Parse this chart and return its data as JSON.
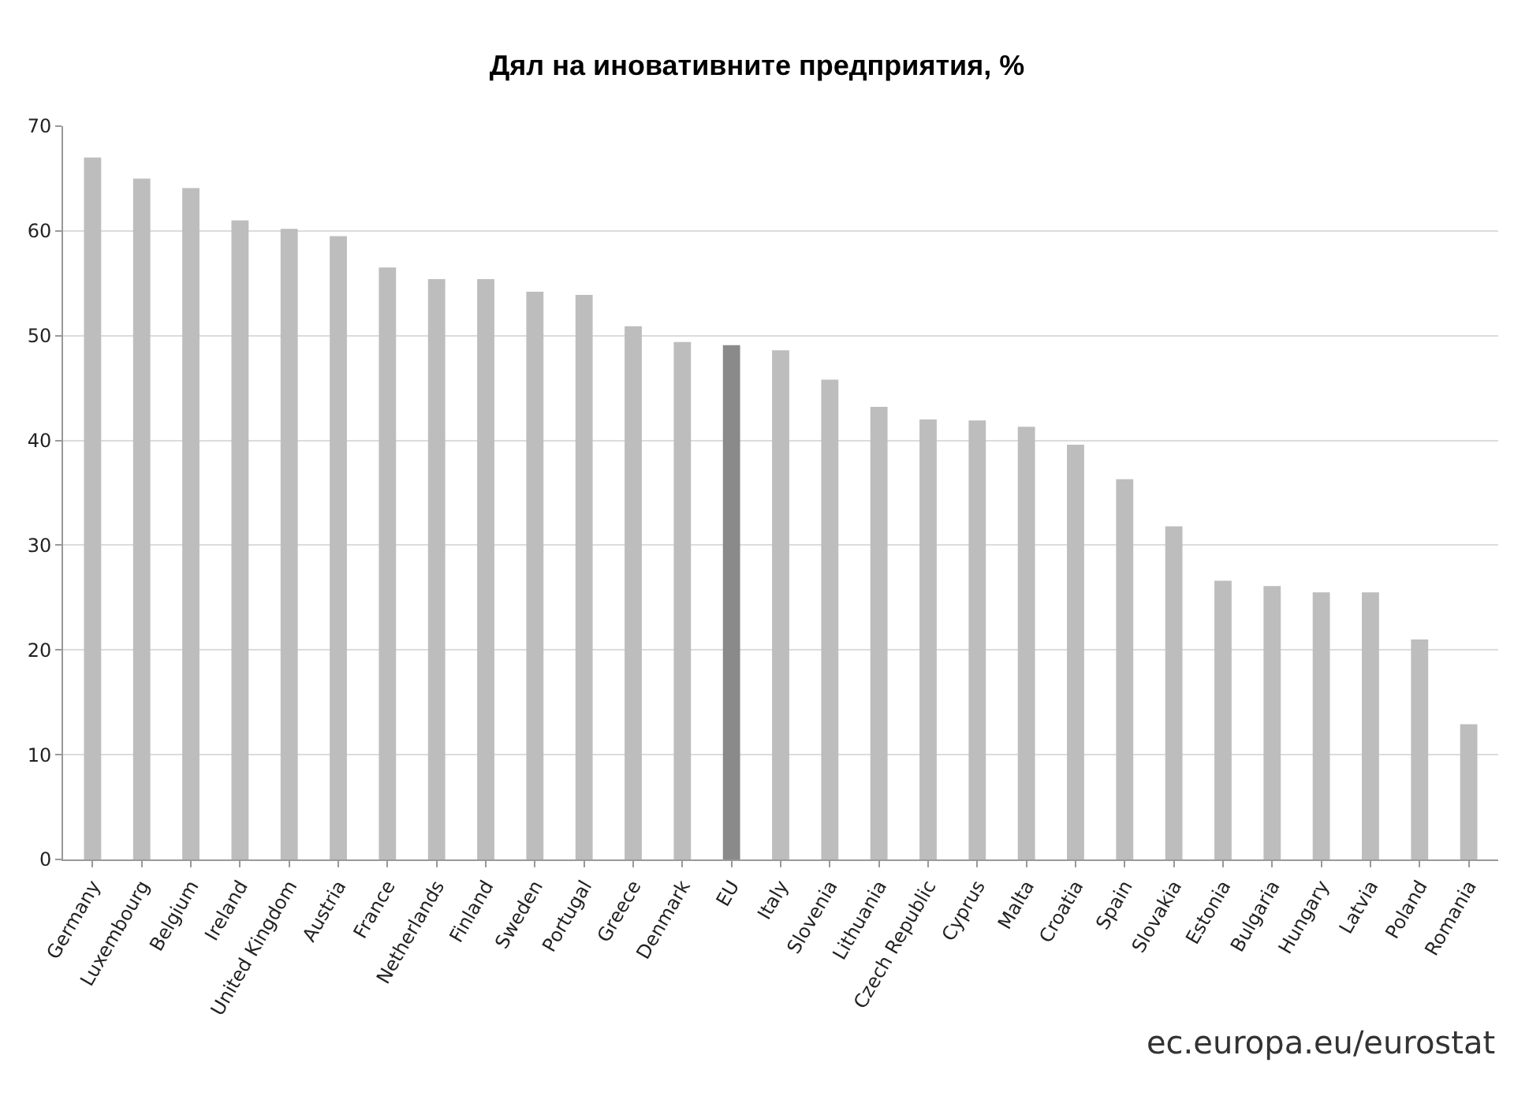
{
  "chart_data": {
    "type": "bar",
    "title": "Дял на иновативните предприятия, %",
    "categories": [
      "Germany",
      "Luxembourg",
      "Belgium",
      "Ireland",
      "United Kingdom",
      "Austria",
      "France",
      "Netherlands",
      "Finland",
      "Sweden",
      "Portugal",
      "Greece",
      "Denmark",
      "EU",
      "Italy",
      "Slovenia",
      "Lithuania",
      "Czech Republic",
      "Cyprus",
      "Malta",
      "Croatia",
      "Spain",
      "Slovakia",
      "Estonia",
      "Bulgaria",
      "Hungary",
      "Latvia",
      "Poland",
      "Romania"
    ],
    "values": [
      67.0,
      65.0,
      64.1,
      61.0,
      60.2,
      59.5,
      56.5,
      55.4,
      55.4,
      54.2,
      53.9,
      50.9,
      49.4,
      49.1,
      48.6,
      45.8,
      43.2,
      42.0,
      41.9,
      41.3,
      39.6,
      36.3,
      31.8,
      26.6,
      26.1,
      25.5,
      25.5,
      21.0,
      12.9
    ],
    "colors": [
      "#bdbdbd",
      "#bdbdbd",
      "#bdbdbd",
      "#bdbdbd",
      "#bdbdbd",
      "#bdbdbd",
      "#bdbdbd",
      "#bdbdbd",
      "#bdbdbd",
      "#bdbdbd",
      "#bdbdbd",
      "#bdbdbd",
      "#bdbdbd",
      "#8a8a8a",
      "#bdbdbd",
      "#bdbdbd",
      "#bdbdbd",
      "#bdbdbd",
      "#bdbdbd",
      "#bdbdbd",
      "#bdbdbd",
      "#bdbdbd",
      "#bdbdbd",
      "#bdbdbd",
      "#bdbdbd",
      "#bdbdbd",
      "#bdbdbd",
      "#bdbdbd",
      "#bdbdbd"
    ],
    "ylim": [
      0,
      70
    ],
    "yticks": [
      0,
      10,
      20,
      30,
      40,
      50,
      60,
      70
    ],
    "grid": "y",
    "legend": false,
    "annotations": [
      "ec.europa.eu/eurostat"
    ]
  }
}
